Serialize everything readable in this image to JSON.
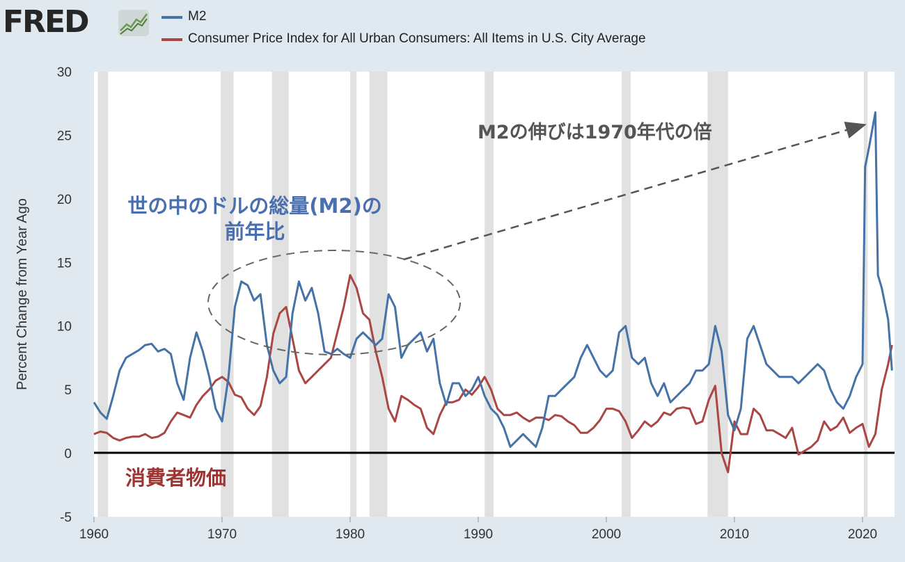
{
  "header": {
    "logo_text": "FRED"
  },
  "colors": {
    "m2": "#4572a7",
    "cpi": "#aa4643",
    "recession": "#e1e1e1",
    "plot_bg": "#ffffff",
    "page_bg": "#e1e9f0"
  },
  "legend": [
    {
      "label": "M2",
      "color": "#4572a7"
    },
    {
      "label": "Consumer Price Index for All Urban Consumers: All Items in U.S. City Average",
      "color": "#aa4643"
    }
  ],
  "annotations": {
    "m2_growth": "M2の伸びは1970年代の倍",
    "m2_line1": "世の中のドルの総量(M2)の",
    "m2_line2": "前年比",
    "cpi": "消費者物価"
  },
  "chart_data": {
    "type": "line",
    "title": "",
    "xlabel": "",
    "ylabel": "Percent Change from Year Ago",
    "xlim": [
      1960,
      2022.5
    ],
    "ylim": [
      -5,
      30
    ],
    "xticks": [
      "1960",
      "1970",
      "1980",
      "1990",
      "2000",
      "2010",
      "2020"
    ],
    "yticks": [
      "30",
      "25",
      "20",
      "15",
      "10",
      "5",
      "0",
      "-5"
    ],
    "grid": false,
    "legend_position": "top",
    "recessions": [
      [
        1960.3,
        1961.1
      ],
      [
        1969.9,
        1970.9
      ],
      [
        1973.9,
        1975.2
      ],
      [
        1980.0,
        1980.5
      ],
      [
        1981.5,
        1982.9
      ],
      [
        1990.5,
        1991.2
      ],
      [
        2001.2,
        2001.9
      ],
      [
        2007.9,
        2009.5
      ],
      [
        2020.1,
        2020.4
      ]
    ],
    "series": [
      {
        "name": "M2",
        "x": [
          1960.0,
          1960.5,
          1961.0,
          1961.5,
          1962.0,
          1962.5,
          1963.0,
          1963.5,
          1964.0,
          1964.5,
          1965.0,
          1965.5,
          1966.0,
          1966.5,
          1967.0,
          1967.5,
          1968.0,
          1968.5,
          1969.0,
          1969.5,
          1970.0,
          1970.5,
          1971.0,
          1971.5,
          1972.0,
          1972.5,
          1973.0,
          1973.5,
          1974.0,
          1974.5,
          1975.0,
          1975.5,
          1976.0,
          1976.5,
          1977.0,
          1977.5,
          1978.0,
          1978.5,
          1979.0,
          1979.5,
          1980.0,
          1980.5,
          1981.0,
          1981.5,
          1982.0,
          1982.5,
          1983.0,
          1983.5,
          1984.0,
          1984.5,
          1985.0,
          1985.5,
          1986.0,
          1986.5,
          1987.0,
          1987.5,
          1988.0,
          1988.5,
          1989.0,
          1989.5,
          1990.0,
          1990.5,
          1991.0,
          1991.5,
          1992.0,
          1992.5,
          1993.0,
          1993.5,
          1994.0,
          1994.5,
          1995.0,
          1995.5,
          1996.0,
          1996.5,
          1997.0,
          1997.5,
          1998.0,
          1998.5,
          1999.0,
          1999.5,
          2000.0,
          2000.5,
          2001.0,
          2001.5,
          2002.0,
          2002.5,
          2003.0,
          2003.5,
          2004.0,
          2004.5,
          2005.0,
          2005.5,
          2006.0,
          2006.5,
          2007.0,
          2007.5,
          2008.0,
          2008.5,
          2009.0,
          2009.5,
          2010.0,
          2010.5,
          2011.0,
          2011.5,
          2012.0,
          2012.5,
          2013.0,
          2013.5,
          2014.0,
          2014.5,
          2015.0,
          2015.5,
          2016.0,
          2016.5,
          2017.0,
          2017.5,
          2018.0,
          2018.5,
          2019.0,
          2019.5,
          2020.0,
          2020.2,
          2020.5,
          2021.0,
          2021.2,
          2021.5,
          2022.0,
          2022.3
        ],
        "values": [
          4.0,
          3.2,
          2.7,
          4.5,
          6.5,
          7.5,
          7.8,
          8.1,
          8.5,
          8.6,
          8.0,
          8.2,
          7.8,
          5.5,
          4.2,
          7.5,
          9.5,
          8.0,
          6.0,
          3.5,
          2.5,
          6.0,
          11.5,
          13.5,
          13.2,
          12.0,
          12.5,
          8.5,
          6.5,
          5.5,
          6.0,
          11.0,
          13.5,
          12.0,
          13.0,
          11.0,
          8.0,
          7.8,
          8.2,
          7.8,
          7.5,
          9.0,
          9.5,
          9.0,
          8.5,
          9.0,
          12.5,
          11.5,
          7.5,
          8.5,
          9.0,
          9.5,
          8.0,
          9.0,
          5.5,
          3.8,
          5.5,
          5.5,
          4.5,
          5.0,
          6.0,
          4.5,
          3.5,
          3.0,
          2.0,
          0.5,
          1.0,
          1.5,
          1.0,
          0.5,
          2.0,
          4.5,
          4.5,
          5.0,
          5.5,
          6.0,
          7.5,
          8.5,
          7.5,
          6.5,
          6.0,
          6.5,
          9.5,
          10.0,
          7.5,
          7.0,
          7.5,
          5.5,
          4.5,
          5.5,
          4.0,
          4.5,
          5.0,
          5.5,
          6.5,
          6.5,
          7.0,
          10.0,
          8.0,
          3.0,
          1.8,
          3.5,
          9.0,
          10.0,
          8.5,
          7.0,
          6.5,
          6.0,
          6.0,
          6.0,
          5.5,
          6.0,
          6.5,
          7.0,
          6.5,
          5.0,
          4.0,
          3.5,
          4.5,
          6.0,
          7.0,
          22.5,
          24.0,
          26.8,
          14.0,
          13.0,
          10.5,
          6.5
        ]
      },
      {
        "name": "Consumer Price Index for All Urban Consumers: All Items in U.S. City Average",
        "x": [
          1960.0,
          1960.5,
          1961.0,
          1961.5,
          1962.0,
          1962.5,
          1963.0,
          1963.5,
          1964.0,
          1964.5,
          1965.0,
          1965.5,
          1966.0,
          1966.5,
          1967.0,
          1967.5,
          1968.0,
          1968.5,
          1969.0,
          1969.5,
          1970.0,
          1970.5,
          1971.0,
          1971.5,
          1972.0,
          1972.5,
          1973.0,
          1973.5,
          1974.0,
          1974.5,
          1975.0,
          1975.5,
          1976.0,
          1976.5,
          1977.0,
          1977.5,
          1978.0,
          1978.5,
          1979.0,
          1979.5,
          1980.0,
          1980.5,
          1981.0,
          1981.5,
          1982.0,
          1982.5,
          1983.0,
          1983.5,
          1984.0,
          1984.5,
          1985.0,
          1985.5,
          1986.0,
          1986.5,
          1987.0,
          1987.5,
          1988.0,
          1988.5,
          1989.0,
          1989.5,
          1990.0,
          1990.5,
          1991.0,
          1991.5,
          1992.0,
          1992.5,
          1993.0,
          1993.5,
          1994.0,
          1994.5,
          1995.0,
          1995.5,
          1996.0,
          1996.5,
          1997.0,
          1997.5,
          1998.0,
          1998.5,
          1999.0,
          1999.5,
          2000.0,
          2000.5,
          2001.0,
          2001.5,
          2002.0,
          2002.5,
          2003.0,
          2003.5,
          2004.0,
          2004.5,
          2005.0,
          2005.5,
          2006.0,
          2006.5,
          2007.0,
          2007.5,
          2008.0,
          2008.5,
          2009.0,
          2009.5,
          2010.0,
          2010.5,
          2011.0,
          2011.5,
          2012.0,
          2012.5,
          2013.0,
          2013.5,
          2014.0,
          2014.5,
          2015.0,
          2015.5,
          2016.0,
          2016.5,
          2017.0,
          2017.5,
          2018.0,
          2018.5,
          2019.0,
          2019.5,
          2020.0,
          2020.5,
          2021.0,
          2021.5,
          2022.0,
          2022.3
        ],
        "values": [
          1.5,
          1.7,
          1.6,
          1.2,
          1.0,
          1.2,
          1.3,
          1.3,
          1.5,
          1.2,
          1.3,
          1.6,
          2.5,
          3.2,
          3.0,
          2.8,
          3.8,
          4.5,
          5.0,
          5.7,
          6.0,
          5.6,
          4.6,
          4.4,
          3.5,
          3.0,
          3.7,
          6.0,
          9.4,
          11.0,
          11.5,
          9.0,
          6.5,
          5.5,
          6.0,
          6.5,
          7.0,
          7.5,
          9.5,
          11.5,
          14.0,
          13.0,
          11.0,
          10.5,
          8.0,
          6.0,
          3.5,
          2.5,
          4.5,
          4.2,
          3.8,
          3.5,
          2.0,
          1.5,
          3.0,
          4.0,
          4.0,
          4.2,
          5.0,
          4.6,
          5.2,
          6.0,
          5.0,
          3.5,
          3.0,
          3.0,
          3.2,
          2.8,
          2.5,
          2.8,
          2.8,
          2.6,
          3.0,
          2.9,
          2.5,
          2.2,
          1.6,
          1.6,
          2.0,
          2.6,
          3.5,
          3.5,
          3.3,
          2.5,
          1.2,
          1.8,
          2.5,
          2.1,
          2.5,
          3.2,
          3.0,
          3.5,
          3.6,
          3.5,
          2.3,
          2.5,
          4.2,
          5.3,
          0.0,
          -1.5,
          2.5,
          1.5,
          1.5,
          3.5,
          3.0,
          1.8,
          1.8,
          1.5,
          1.2,
          2.0,
          -0.1,
          0.2,
          0.5,
          1.0,
          2.5,
          1.8,
          2.1,
          2.8,
          1.6,
          2.0,
          2.3,
          0.5,
          1.5,
          5.0,
          7.0,
          8.5
        ]
      }
    ]
  }
}
